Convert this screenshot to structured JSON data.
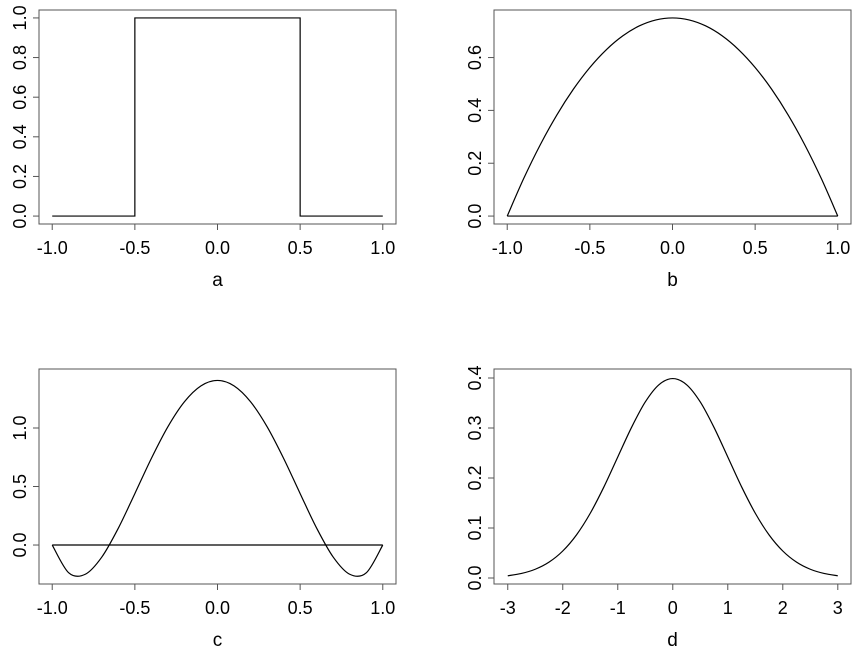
{
  "chart_data": [
    {
      "type": "line",
      "xlabel": "a",
      "xlim": [
        -1.08,
        1.08
      ],
      "ylim": [
        -0.04,
        1.04
      ],
      "xticks": [
        -1.0,
        -0.5,
        0.0,
        0.5,
        1.0
      ],
      "xtick_labels": [
        "-1.0",
        "-0.5",
        "0.0",
        "0.5",
        "1.0"
      ],
      "yticks": [
        0.0,
        0.2,
        0.4,
        0.6,
        0.8,
        1.0
      ],
      "ytick_labels": [
        "0.0",
        "0.2",
        "0.4",
        "0.6",
        "0.8",
        "1.0"
      ],
      "grid": false,
      "smooth": false,
      "x": [
        -1.0,
        -0.5,
        -0.5,
        0.5,
        0.5,
        1.0
      ],
      "y": [
        0,
        0,
        1,
        1,
        0,
        0
      ]
    },
    {
      "type": "line",
      "xlabel": "b",
      "xlim": [
        -1.08,
        1.08
      ],
      "ylim": [
        -0.03,
        0.78
      ],
      "xticks": [
        -1.0,
        -0.5,
        0.0,
        0.5,
        1.0
      ],
      "xtick_labels": [
        "-1.0",
        "-0.5",
        "0.0",
        "0.5",
        "1.0"
      ],
      "yticks": [
        0.0,
        0.2,
        0.4,
        0.6
      ],
      "ytick_labels": [
        "0.0",
        "0.2",
        "0.4",
        "0.6"
      ],
      "grid": false,
      "smooth": true,
      "baseline": 0,
      "x": [
        -1.0,
        -0.9,
        -0.8,
        -0.7,
        -0.6,
        -0.5,
        -0.4,
        -0.3,
        -0.2,
        -0.1,
        0.0,
        0.1,
        0.2,
        0.3,
        0.4,
        0.5,
        0.6,
        0.7,
        0.8,
        0.9,
        1.0
      ],
      "y": [
        0,
        0.1425,
        0.27,
        0.3825,
        0.48,
        0.5625,
        0.63,
        0.6825,
        0.72,
        0.7425,
        0.75,
        0.7425,
        0.72,
        0.6825,
        0.63,
        0.5625,
        0.48,
        0.3825,
        0.27,
        0.1425,
        0
      ]
    },
    {
      "type": "line",
      "xlabel": "c",
      "xlim": [
        -1.08,
        1.08
      ],
      "ylim": [
        -0.333,
        1.504
      ],
      "xticks": [
        -1.0,
        -0.5,
        0.0,
        0.5,
        1.0
      ],
      "xtick_labels": [
        "-1.0",
        "-0.5",
        "0.0",
        "0.5",
        "1.0"
      ],
      "yticks": [
        0.0,
        0.5,
        1.0
      ],
      "ytick_labels": [
        "0.0",
        "0.5",
        "1.0"
      ],
      "grid": false,
      "smooth": true,
      "baseline": 0,
      "x": [
        -1.0,
        -0.9,
        -0.8,
        -0.7,
        -0.6,
        -0.5,
        -0.4,
        -0.3,
        -0.2,
        -0.1,
        0.0,
        0.1,
        0.2,
        0.3,
        0.4,
        0.5,
        0.6,
        0.7,
        0.8,
        0.9,
        1.0
      ],
      "y": [
        0,
        -0.2378,
        -0.2498,
        -0.1028,
        0.144,
        0.4395,
        0.7403,
        1.011,
        1.224,
        1.3597,
        1.4063,
        1.3597,
        1.224,
        1.011,
        0.7403,
        0.4395,
        0.144,
        -0.1028,
        -0.2498,
        -0.2378,
        0
      ]
    },
    {
      "type": "line",
      "xlabel": "d",
      "xlim": [
        -3.25,
        3.24
      ],
      "ylim": [
        -0.012,
        0.418
      ],
      "xticks": [
        -3,
        -2,
        -1,
        0,
        1,
        2,
        3
      ],
      "xtick_labels": [
        "-3",
        "-2",
        "-1",
        "0",
        "1",
        "2",
        "3"
      ],
      "yticks": [
        0.0,
        0.1,
        0.2,
        0.3,
        0.4
      ],
      "ytick_labels": [
        "0.0",
        "0.1",
        "0.2",
        "0.3",
        "0.4"
      ],
      "grid": false,
      "smooth": true,
      "x": [
        -3,
        -2.75,
        -2.5,
        -2.25,
        -2,
        -1.75,
        -1.5,
        -1.25,
        -1,
        -0.75,
        -0.5,
        -0.25,
        0,
        0.25,
        0.5,
        0.75,
        1,
        1.25,
        1.5,
        1.75,
        2,
        2.25,
        2.5,
        2.75,
        3
      ],
      "y": [
        0.0044,
        0.0091,
        0.0175,
        0.0317,
        0.054,
        0.0863,
        0.1295,
        0.1826,
        0.242,
        0.3011,
        0.3521,
        0.3867,
        0.3989,
        0.3867,
        0.3521,
        0.3011,
        0.242,
        0.1826,
        0.1295,
        0.0863,
        0.054,
        0.0317,
        0.0175,
        0.0091,
        0.0044
      ]
    }
  ]
}
